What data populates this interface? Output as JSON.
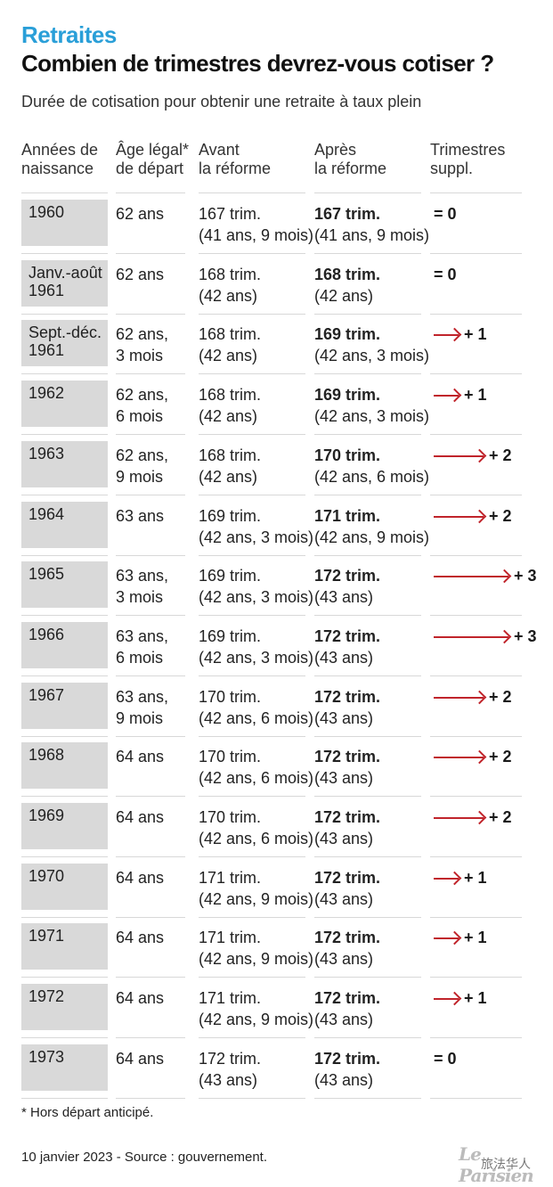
{
  "header": {
    "kicker": "Retraites",
    "title": "Combien de trimestres devrez-vous cotiser ?",
    "subtitle": "Durée de cotisation pour obtenir une retraite à taux plein"
  },
  "columns": [
    {
      "l1": "Années de",
      "l2": "naissance"
    },
    {
      "l1": "Âge légal*",
      "l2": "de départ"
    },
    {
      "l1": "Avant",
      "l2": "la réforme"
    },
    {
      "l1": "Après",
      "l2": "la réforme"
    },
    {
      "l1": "Trimestres",
      "l2": "suppl."
    }
  ],
  "chart_data": {
    "type": "table",
    "title": "Combien de trimestres devrez-vous cotiser ?",
    "rows": [
      {
        "year": "1960",
        "year2": "",
        "age1": "62 ans",
        "age2": "",
        "before": "167 trim.",
        "before_d": "(41 ans, 9 mois)",
        "after": "167 trim.",
        "after_d": "(41 ans, 9 mois)",
        "extra": 0,
        "extra_label": "= 0"
      },
      {
        "year": "Janv.-août",
        "year2": "1961",
        "age1": "62 ans",
        "age2": "",
        "before": "168 trim.",
        "before_d": "(42 ans)",
        "after": "168 trim.",
        "after_d": "(42 ans)",
        "extra": 0,
        "extra_label": "= 0"
      },
      {
        "year": "Sept.-déc.",
        "year2": "1961",
        "age1": "62 ans,",
        "age2": "3 mois",
        "before": "168 trim.",
        "before_d": "(42 ans)",
        "after": "169 trim.",
        "after_d": "(42 ans, 3 mois)",
        "extra": 1,
        "extra_label": "+ 1"
      },
      {
        "year": "1962",
        "year2": "",
        "age1": "62 ans,",
        "age2": "6 mois",
        "before": "168 trim.",
        "before_d": "(42 ans)",
        "after": "169 trim.",
        "after_d": "(42 ans, 3 mois)",
        "extra": 1,
        "extra_label": "+ 1"
      },
      {
        "year": "1963",
        "year2": "",
        "age1": "62 ans,",
        "age2": "9 mois",
        "before": "168 trim.",
        "before_d": "(42 ans)",
        "after": "170 trim.",
        "after_d": "(42 ans, 6 mois)",
        "extra": 2,
        "extra_label": "+ 2"
      },
      {
        "year": "1964",
        "year2": "",
        "age1": "63 ans",
        "age2": "",
        "before": "169 trim.",
        "before_d": "(42 ans, 3 mois)",
        "after": "171 trim.",
        "after_d": "(42 ans, 9 mois)",
        "extra": 2,
        "extra_label": "+ 2"
      },
      {
        "year": "1965",
        "year2": "",
        "age1": "63 ans,",
        "age2": "3 mois",
        "before": "169 trim.",
        "before_d": "(42 ans, 3 mois)",
        "after": "172 trim.",
        "after_d": "(43 ans)",
        "extra": 3,
        "extra_label": "+ 3"
      },
      {
        "year": "1966",
        "year2": "",
        "age1": "63 ans,",
        "age2": "6 mois",
        "before": "169 trim.",
        "before_d": "(42 ans, 3 mois)",
        "after": "172 trim.",
        "after_d": "(43 ans)",
        "extra": 3,
        "extra_label": "+ 3"
      },
      {
        "year": "1967",
        "year2": "",
        "age1": "63 ans,",
        "age2": "9 mois",
        "before": "170 trim.",
        "before_d": "(42 ans, 6 mois)",
        "after": "172 trim.",
        "after_d": "(43 ans)",
        "extra": 2,
        "extra_label": "+ 2"
      },
      {
        "year": "1968",
        "year2": "",
        "age1": "64 ans",
        "age2": "",
        "before": "170 trim.",
        "before_d": "(42 ans, 6 mois)",
        "after": "172 trim.",
        "after_d": "(43 ans)",
        "extra": 2,
        "extra_label": "+ 2"
      },
      {
        "year": "1969",
        "year2": "",
        "age1": "64 ans",
        "age2": "",
        "before": "170 trim.",
        "before_d": "(42 ans, 6 mois)",
        "after": "172 trim.",
        "after_d": "(43 ans)",
        "extra": 2,
        "extra_label": "+ 2"
      },
      {
        "year": "1970",
        "year2": "",
        "age1": "64 ans",
        "age2": "",
        "before": "171 trim.",
        "before_d": "(42 ans, 9 mois)",
        "after": "172 trim.",
        "after_d": "(43 ans)",
        "extra": 1,
        "extra_label": "+ 1"
      },
      {
        "year": "1971",
        "year2": "",
        "age1": "64 ans",
        "age2": "",
        "before": "171 trim.",
        "before_d": "(42 ans, 9 mois)",
        "after": "172 trim.",
        "after_d": "(43 ans)",
        "extra": 1,
        "extra_label": "+ 1"
      },
      {
        "year": "1972",
        "year2": "",
        "age1": "64 ans",
        "age2": "",
        "before": "171 trim.",
        "before_d": "(42 ans, 9 mois)",
        "after": "172 trim.",
        "after_d": "(43 ans)",
        "extra": 1,
        "extra_label": "+ 1"
      },
      {
        "year": "1973",
        "year2": "",
        "age1": "64 ans",
        "age2": "",
        "before": "172 trim.",
        "before_d": "(43 ans)",
        "after": "172 trim.",
        "after_d": "(43 ans)",
        "extra": 0,
        "extra_label": "= 0"
      }
    ]
  },
  "colors": {
    "accent": "#2a9fd8",
    "arrow": "#c0242b",
    "year_box": "#d9d9d9"
  },
  "footer": {
    "footnote": "* Hors départ anticipé.",
    "source": "10 janvier 2023 - Source : gouvernement.",
    "logo": "Le Parisien",
    "watermark": "旅法华人"
  }
}
